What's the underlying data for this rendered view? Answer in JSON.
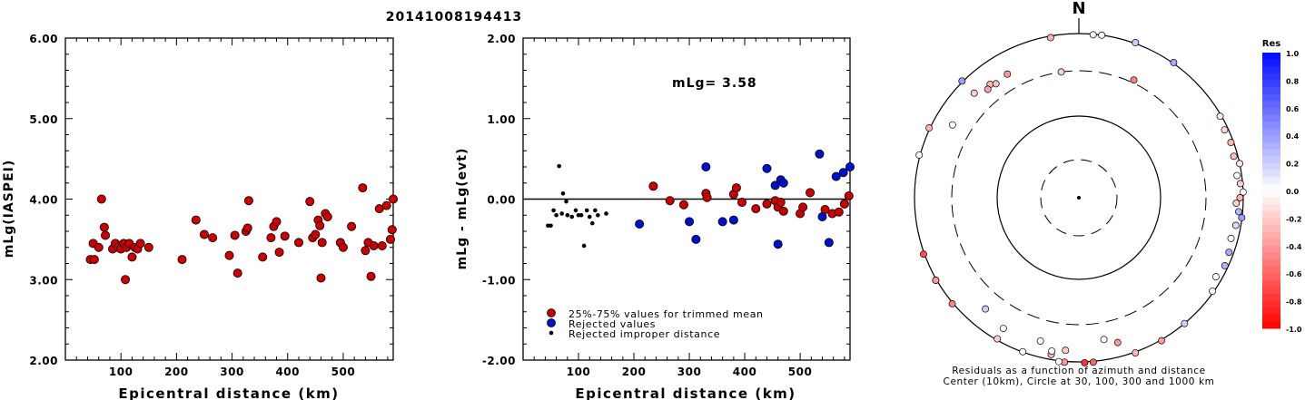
{
  "title": "20141008194413",
  "chart_data": [
    {
      "type": "scatter",
      "panel": "left",
      "xlabel": "Epicentral distance (km)",
      "ylabel": "mLg(IASPEI)",
      "xlim": [
        0,
        590
      ],
      "ylim": [
        2.0,
        6.0
      ],
      "xticks": [
        "100",
        "200",
        "300",
        "400",
        "500"
      ],
      "yticks": [
        "2.00",
        "3.00",
        "4.00",
        "5.00",
        "6.00"
      ],
      "point_color": "#cc0000",
      "points": [
        [
          45,
          3.25
        ],
        [
          50,
          3.45
        ],
        [
          52,
          3.25
        ],
        [
          60,
          3.4
        ],
        [
          65,
          4.0
        ],
        [
          70,
          3.65
        ],
        [
          72,
          3.55
        ],
        [
          85,
          3.38
        ],
        [
          90,
          3.45
        ],
        [
          95,
          3.4
        ],
        [
          100,
          3.38
        ],
        [
          105,
          3.45
        ],
        [
          108,
          3.0
        ],
        [
          110,
          3.4
        ],
        [
          115,
          3.45
        ],
        [
          120,
          3.28
        ],
        [
          125,
          3.4
        ],
        [
          130,
          3.38
        ],
        [
          135,
          3.45
        ],
        [
          150,
          3.4
        ],
        [
          210,
          3.25
        ],
        [
          235,
          3.74
        ],
        [
          250,
          3.56
        ],
        [
          265,
          3.52
        ],
        [
          295,
          3.3
        ],
        [
          305,
          3.55
        ],
        [
          310,
          3.08
        ],
        [
          325,
          3.6
        ],
        [
          328,
          3.64
        ],
        [
          330,
          3.98
        ],
        [
          355,
          3.28
        ],
        [
          370,
          3.52
        ],
        [
          375,
          3.66
        ],
        [
          380,
          3.72
        ],
        [
          385,
          3.34
        ],
        [
          395,
          3.54
        ],
        [
          420,
          3.46
        ],
        [
          440,
          3.97
        ],
        [
          445,
          3.52
        ],
        [
          450,
          3.56
        ],
        [
          455,
          3.74
        ],
        [
          458,
          3.67
        ],
        [
          460,
          3.02
        ],
        [
          462,
          3.46
        ],
        [
          468,
          3.82
        ],
        [
          472,
          3.78
        ],
        [
          495,
          3.46
        ],
        [
          500,
          3.4
        ],
        [
          515,
          3.66
        ],
        [
          535,
          4.14
        ],
        [
          540,
          3.36
        ],
        [
          545,
          3.46
        ],
        [
          550,
          3.04
        ],
        [
          555,
          3.42
        ],
        [
          565,
          3.88
        ],
        [
          570,
          3.42
        ],
        [
          578,
          3.92
        ],
        [
          585,
          3.5
        ],
        [
          588,
          3.62
        ],
        [
          590,
          4.0
        ]
      ]
    },
    {
      "type": "scatter",
      "panel": "middle",
      "xlabel": "Epicentral distance (km)",
      "ylabel": "mLg - mLg(evt)",
      "xlim": [
        0,
        590
      ],
      "ylim": [
        -2.0,
        2.0
      ],
      "xticks": [
        "100",
        "200",
        "300",
        "400",
        "500"
      ],
      "yticks": [
        "-2.00",
        "-1.00",
        "0.00",
        "1.00",
        "2.00"
      ],
      "annotation": "mLg= 3.58",
      "zero_line": 0.0,
      "legend": [
        {
          "label": "25%-75% values for trimmed mean",
          "color": "#cc0000",
          "marker": "circle"
        },
        {
          "label": "Rejected values",
          "color": "#0010cc",
          "marker": "circle"
        },
        {
          "label": "Rejected improper distance",
          "color": "#000000",
          "marker": "dot"
        }
      ],
      "series": [
        {
          "name": "25%-75% values for trimmed mean",
          "color": "#cc0000",
          "points": [
            [
              235,
              0.16
            ],
            [
              265,
              -0.02
            ],
            [
              290,
              -0.07
            ],
            [
              330,
              0.07
            ],
            [
              332,
              0.02
            ],
            [
              380,
              0.06
            ],
            [
              385,
              0.14
            ],
            [
              395,
              -0.04
            ],
            [
              420,
              -0.12
            ],
            [
              440,
              -0.06
            ],
            [
              455,
              -0.02
            ],
            [
              460,
              -0.1
            ],
            [
              465,
              -0.04
            ],
            [
              470,
              -0.15
            ],
            [
              500,
              -0.18
            ],
            [
              505,
              -0.1
            ],
            [
              518,
              0.08
            ],
            [
              545,
              -0.13
            ],
            [
              558,
              -0.18
            ],
            [
              570,
              -0.16
            ],
            [
              580,
              -0.06
            ],
            [
              588,
              0.04
            ]
          ]
        },
        {
          "name": "Rejected values",
          "color": "#0010cc",
          "points": [
            [
              210,
              -0.31
            ],
            [
              300,
              -0.28
            ],
            [
              312,
              -0.5
            ],
            [
              330,
              0.4
            ],
            [
              360,
              -0.28
            ],
            [
              380,
              -0.26
            ],
            [
              440,
              0.38
            ],
            [
              455,
              0.17
            ],
            [
              465,
              0.24
            ],
            [
              470,
              0.2
            ],
            [
              460,
              -0.56
            ],
            [
              535,
              0.56
            ],
            [
              540,
              -0.22
            ],
            [
              552,
              -0.54
            ],
            [
              565,
              0.28
            ],
            [
              578,
              0.33
            ],
            [
              590,
              0.4
            ]
          ]
        },
        {
          "name": "Rejected improper distance",
          "color": "#000000",
          "points": [
            [
              45,
              -0.33
            ],
            [
              50,
              -0.33
            ],
            [
              55,
              -0.14
            ],
            [
              60,
              -0.2
            ],
            [
              65,
              0.41
            ],
            [
              70,
              -0.18
            ],
            [
              72,
              0.07
            ],
            [
              78,
              -0.03
            ],
            [
              80,
              -0.2
            ],
            [
              88,
              -0.22
            ],
            [
              95,
              -0.14
            ],
            [
              100,
              -0.2
            ],
            [
              105,
              -0.2
            ],
            [
              110,
              -0.58
            ],
            [
              115,
              -0.14
            ],
            [
              120,
              -0.22
            ],
            [
              125,
              -0.3
            ],
            [
              130,
              -0.14
            ],
            [
              135,
              -0.2
            ],
            [
              150,
              -0.18
            ]
          ]
        }
      ]
    },
    {
      "type": "polar_scatter",
      "panel": "right",
      "north_label": "N",
      "caption_line1": "Residuals as a function of azimuth and distance",
      "caption_line2": "Center (10km), Circle at 30, 100, 300 and 1000 km",
      "colorbar_title": "Res",
      "colorbar_ticks": [
        "1.0",
        "0.8",
        "0.6",
        "0.4",
        "0.2",
        "0.0",
        "-0.2",
        "-0.4",
        "-0.6",
        "-0.8",
        "-1.0"
      ],
      "colorbar_range": [
        -1.0,
        1.0
      ],
      "points_az_dist_res": [
        [
          20,
          1100,
          0.2
        ],
        [
          35,
          1050,
          0.35
        ],
        [
          5,
          980,
          0.0
        ],
        [
          8,
          1000,
          0.0
        ],
        [
          -10,
          950,
          -0.3
        ],
        [
          -45,
          1200,
          0.4
        ],
        [
          -75,
          1350,
          0.0
        ],
        [
          -120,
          1400,
          -0.5
        ],
        [
          -110,
          1300,
          -0.7
        ],
        [
          -65,
          1050,
          -0.3
        ],
        [
          -60,
          550,
          0.0
        ],
        [
          -45,
          590,
          -0.2
        ],
        [
          -38,
          520,
          -0.3
        ],
        [
          -40,
          480,
          -0.35
        ],
        [
          -36,
          470,
          -0.25
        ],
        [
          -30,
          500,
          -0.4
        ],
        [
          -8,
          300,
          -0.2
        ],
        [
          25,
          330,
          -0.5
        ],
        [
          60,
          960,
          -0.1
        ],
        [
          65,
          890,
          -0.15
        ],
        [
          70,
          920,
          -0.3
        ],
        [
          75,
          880,
          -0.25
        ],
        [
          78,
          1000,
          -0.1
        ],
        [
          82,
          860,
          0.0
        ],
        [
          85,
          930,
          -0.2
        ],
        [
          88,
          1000,
          0.0
        ],
        [
          90,
          900,
          -0.3
        ],
        [
          92,
          800,
          -0.2
        ],
        [
          95,
          880,
          0.3
        ],
        [
          97,
          990,
          0.4
        ],
        [
          100,
          850,
          0.15
        ],
        [
          105,
          800,
          0.0
        ],
        [
          110,
          860,
          0.35
        ],
        [
          115,
          900,
          0.3
        ],
        [
          120,
          820,
          0.0
        ],
        [
          125,
          960,
          0.0
        ],
        [
          150,
          1060,
          -0.4
        ],
        [
          140,
          1000,
          0.2
        ],
        [
          160,
          1100,
          -0.3
        ],
        [
          175,
          1200,
          -0.6
        ],
        [
          178,
          1450,
          -0.8
        ],
        [
          -175,
          1600,
          -0.4
        ],
        [
          -173,
          1700,
          0.0
        ],
        [
          -150,
          960,
          -0.2
        ],
        [
          -160,
          990,
          0.0
        ],
        [
          -170,
          850,
          -0.3
        ],
        [
          -165,
          600,
          0.0
        ],
        [
          -170,
          760,
          0.0
        ],
        [
          -175,
          700,
          -0.2
        ],
        [
          -150,
          650,
          0.0
        ],
        [
          -140,
          540,
          0.2
        ],
        [
          170,
          520,
          0.0
        ],
        [
          165,
          630,
          -0.4
        ],
        [
          -130,
          1100,
          -0.5
        ],
        [
          -120,
          1100,
          -0.4
        ]
      ]
    }
  ]
}
